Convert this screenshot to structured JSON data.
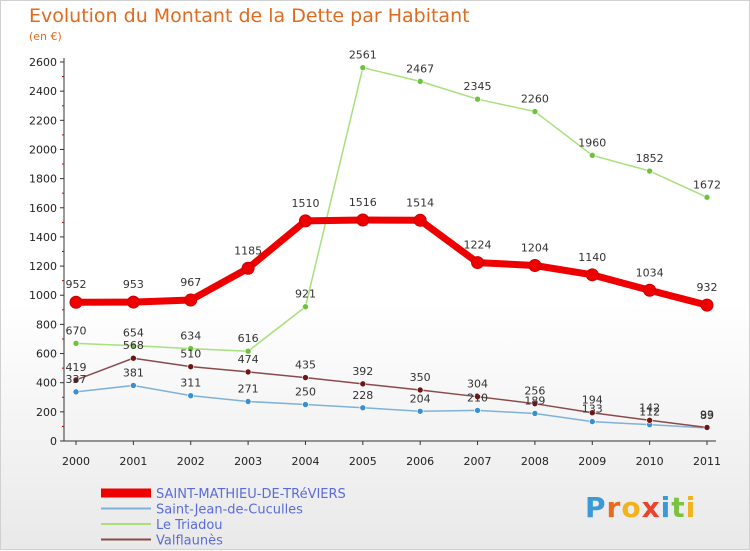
{
  "header": {
    "title": "Evolution du Montant de la Dette par Habitant",
    "unit": "(en €)"
  },
  "logo": {
    "text": "Proxiti",
    "colors": [
      "#3a9ad9",
      "#e86a1e",
      "#f2b21b",
      "#e8452c",
      "#3a9ad9",
      "#7cc242",
      "#f2b21b"
    ]
  },
  "chart_data": {
    "type": "line",
    "title": "Evolution du Montant de la Dette par Habitant",
    "ylabel": "(en €)",
    "xlabel": "",
    "x": [
      "2000",
      "2001",
      "2002",
      "2003",
      "2004",
      "2005",
      "2006",
      "2007",
      "2008",
      "2009",
      "2010",
      "2011"
    ],
    "ylim": [
      0,
      2600
    ],
    "yticks": [
      0,
      200,
      400,
      600,
      800,
      1000,
      1200,
      1400,
      1600,
      1800,
      2000,
      2200,
      2400,
      2600
    ],
    "grid": false,
    "legend_position": "bottom-left",
    "series": [
      {
        "name": "SAINT-MATHIEU-DE-TRéVIERS",
        "values": [
          952,
          953,
          967,
          1185,
          1510,
          1516,
          1514,
          1224,
          1204,
          1140,
          1034,
          932
        ],
        "color": "#ee0000",
        "marker_color": "#ee0000",
        "width": 7
      },
      {
        "name": "Saint-Jean-de-Cuculles",
        "values": [
          337,
          381,
          311,
          271,
          250,
          228,
          204,
          210,
          189,
          133,
          112,
          89
        ],
        "color": "#7fb2d9",
        "marker_color": "#3a8fd0",
        "width": 1.5
      },
      {
        "name": "Le Triadou",
        "values": [
          670,
          654,
          634,
          616,
          921,
          2561,
          2467,
          2345,
          2260,
          1960,
          1852,
          1672
        ],
        "color": "#a8e07c",
        "marker_color": "#6cc43c",
        "width": 1.5
      },
      {
        "name": "Valflaunès",
        "values": [
          419,
          568,
          510,
          474,
          435,
          392,
          350,
          304,
          256,
          194,
          142,
          93
        ],
        "color": "#8a4a4a",
        "marker_color": "#6e1414",
        "width": 1.5
      }
    ]
  }
}
